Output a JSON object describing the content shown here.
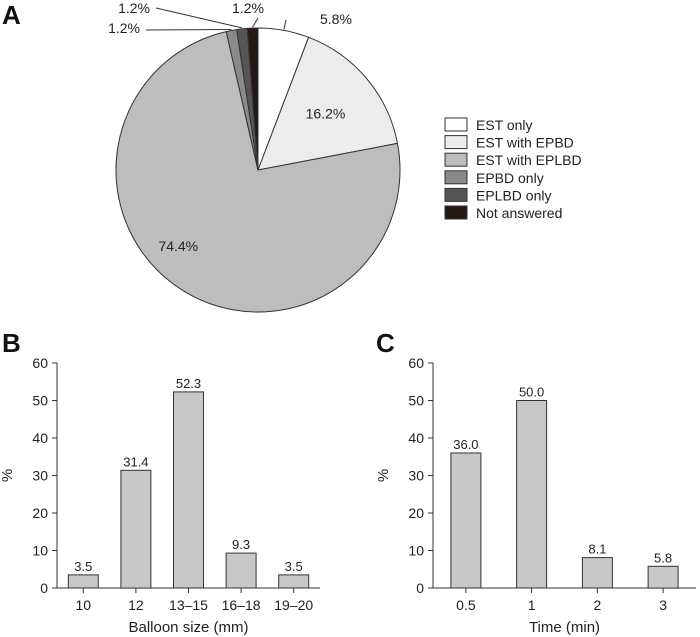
{
  "chart_data": [
    {
      "panel": "A",
      "type": "pie",
      "categories": [
        "EST only",
        "EST with EPBD",
        "EST with EPLBD",
        "EPBD only",
        "EPLBD only",
        "Not answered"
      ],
      "values": [
        5.8,
        16.2,
        74.4,
        1.2,
        1.2,
        1.2
      ],
      "labels": [
        "5.8%",
        "16.2%",
        "74.4%",
        "1.2%",
        "1.2%",
        "1.2%"
      ],
      "colors": [
        "#ffffff",
        "#ececec",
        "#bdbdbd",
        "#8a8a8a",
        "#555555",
        "#231815"
      ],
      "legend": [
        "EST only",
        "EST with EPBD",
        "EST with EPLBD",
        "EPBD only",
        "EPLBD only",
        "Not answered"
      ],
      "legend_position": "right"
    },
    {
      "panel": "B",
      "type": "bar",
      "categories": [
        "10",
        "12",
        "13–15",
        "16–18",
        "19–20"
      ],
      "values": [
        3.5,
        31.4,
        52.3,
        9.3,
        3.5
      ],
      "value_labels": [
        "3.5",
        "31.4",
        "52.3",
        "9.3",
        "3.5"
      ],
      "xlabel": "Balloon size (mm)",
      "ylabel": "%",
      "ylim": [
        0,
        60
      ],
      "yticks": [
        "0",
        "10",
        "20",
        "30",
        "40",
        "50",
        "60"
      ],
      "bar_color": "#c8c8c8"
    },
    {
      "panel": "C",
      "type": "bar",
      "categories": [
        "0.5",
        "1",
        "2",
        "3"
      ],
      "values": [
        36.0,
        50.0,
        8.1,
        5.8
      ],
      "value_labels": [
        "36.0",
        "50.0",
        "8.1",
        "5.8"
      ],
      "xlabel": "Time (min)",
      "ylabel": "%",
      "ylim": [
        0,
        60
      ],
      "yticks": [
        "0",
        "10",
        "20",
        "30",
        "40",
        "50",
        "60"
      ],
      "bar_color": "#c8c8c8"
    }
  ]
}
